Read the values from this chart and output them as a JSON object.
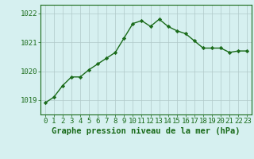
{
  "x": [
    0,
    1,
    2,
    3,
    4,
    5,
    6,
    7,
    8,
    9,
    10,
    11,
    12,
    13,
    14,
    15,
    16,
    17,
    18,
    19,
    20,
    21,
    22,
    23
  ],
  "y": [
    1018.9,
    1019.1,
    1019.5,
    1019.8,
    1019.8,
    1020.05,
    1020.25,
    1020.45,
    1020.65,
    1021.15,
    1021.65,
    1021.75,
    1021.55,
    1021.8,
    1021.55,
    1021.4,
    1021.3,
    1021.05,
    1020.8,
    1020.8,
    1020.8,
    1020.65,
    1020.7,
    1020.7
  ],
  "xlim": [
    -0.5,
    23.5
  ],
  "ylim": [
    1018.5,
    1022.3
  ],
  "yticks": [
    1019,
    1020,
    1021,
    1022
  ],
  "xticks": [
    0,
    1,
    2,
    3,
    4,
    5,
    6,
    7,
    8,
    9,
    10,
    11,
    12,
    13,
    14,
    15,
    16,
    17,
    18,
    19,
    20,
    21,
    22,
    23
  ],
  "xlabel": "Graphe pression niveau de la mer (hPa)",
  "line_color": "#1a6b1a",
  "marker": "D",
  "marker_size": 2.2,
  "bg_color": "#d6f0f0",
  "grid_color": "#b0c8c8",
  "tick_label_color": "#1a6b1a",
  "xlabel_color": "#1a6b1a",
  "xlabel_fontsize": 7.5,
  "tick_fontsize": 6.5,
  "linewidth": 1.0
}
